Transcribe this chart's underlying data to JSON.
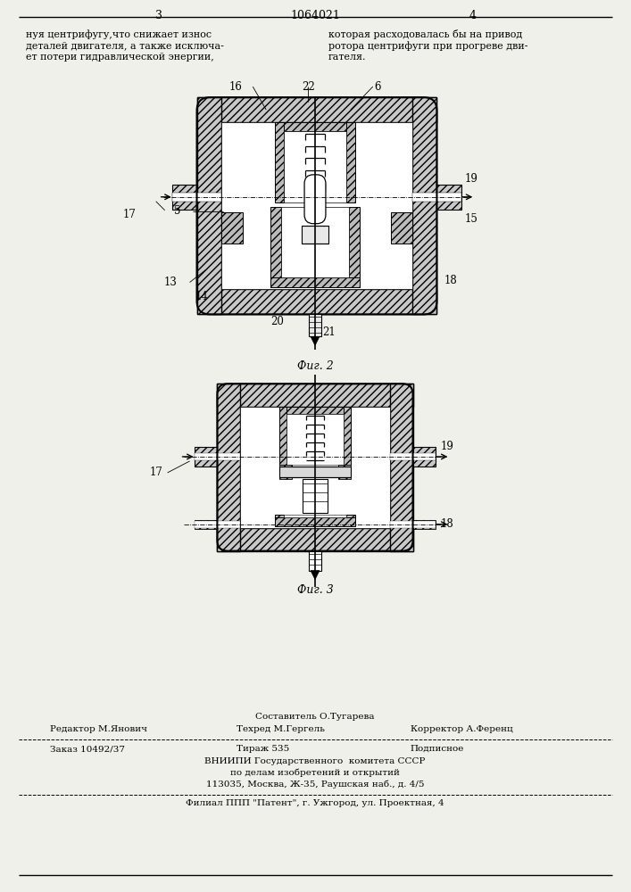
{
  "bg_color": "#f0f0eb",
  "page_width": 7.07,
  "page_height": 10.0,
  "header": {
    "page_left": "3",
    "patent_number": "1064021",
    "page_right": "4"
  },
  "left_text_lines": [
    "нуя центрифугу,что снижает износ",
    "деталей двигателя, а также исключа-",
    "ет потери гидравлической энергии,"
  ],
  "right_text_lines": [
    "которая расходовалась бы на привод",
    "ротора центрифуги при прогреве дви-",
    "гателя."
  ],
  "fig2_caption": "Фиг. 2",
  "fig3_caption": "Фиг. 3",
  "sestavitel": "Составитель О.Тугарева",
  "redaktor": "Редактор М.Янович",
  "tehred": "Техред М.Гергель",
  "korrektor": "Корректор А.Ференц",
  "zakaz": "Заказ 10492/37",
  "tirazh": "Тираж 535",
  "podpisnoe": "Подписное",
  "vniip1": "ВНИИПИ Государственного  комитета СССР",
  "vniip2": "по делам изобретений и открытий",
  "vniip3": "113035, Москва, Ж-35, Раушская наб., д. 4/5",
  "filial": "Филиал ППП \"Патент\", г. Ужгород, ул. Проектная, 4",
  "hatch_color": "#b0b0b0",
  "line_color": "#111111"
}
